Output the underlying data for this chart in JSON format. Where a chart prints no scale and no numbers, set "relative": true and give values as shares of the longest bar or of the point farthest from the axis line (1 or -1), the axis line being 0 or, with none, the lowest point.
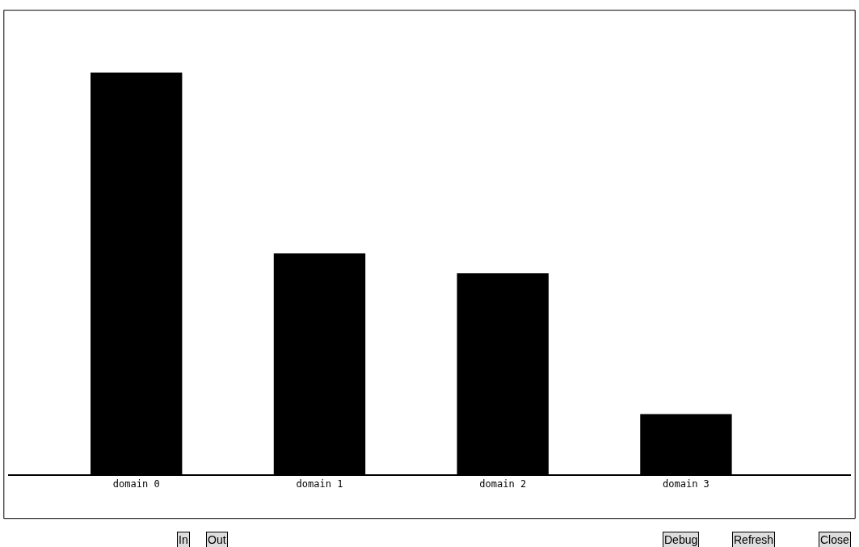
{
  "chart_data": {
    "type": "bar",
    "relative": true,
    "categories": [
      "domain 0",
      "domain 1",
      "domain 2",
      "domain 3"
    ],
    "values": [
      1,
      0.55,
      0.5,
      0.15
    ],
    "color": "#000000",
    "legend": false,
    "annotations": [
      "In",
      "Out",
      "Debug",
      "Refresh",
      "Close"
    ]
  }
}
